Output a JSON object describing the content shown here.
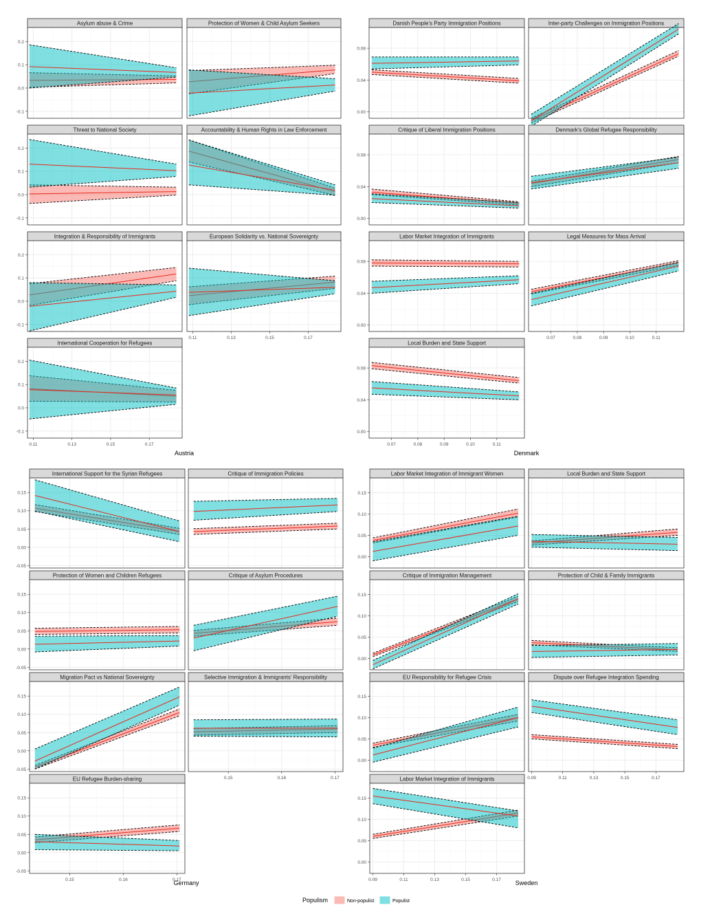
{
  "legend": {
    "title": "Populism",
    "items": [
      {
        "label": "Non-populist",
        "fill": "#F8766D",
        "key": "np"
      },
      {
        "label": "Populist",
        "fill": "#00BFC4",
        "key": "p"
      }
    ]
  },
  "colors": {
    "line": "#e8291c",
    "strip": "#d9d9d9",
    "grid": "#ebebeb",
    "panel_border": "#333333",
    "tick_text": "#4d4d4d"
  },
  "chart_data": [
    {
      "type": "line",
      "country": "Austria",
      "x_ticks": [
        "0.11",
        "0.13",
        "0.15",
        "0.17"
      ],
      "xlim": [
        0.107,
        0.187
      ],
      "xrange": [
        0.108,
        0.184
      ],
      "ylim": [
        -0.13,
        0.26
      ],
      "y_ticks": [
        -0.1,
        0.0,
        0.1,
        0.2
      ],
      "y_tick_labels": [
        "-0.1",
        "0.0",
        "0.1",
        "0.2"
      ],
      "panels": [
        {
          "title": "Asylum abuse & Crime",
          "series": [
            {
              "name": "Non-populist",
              "y0": 0.033,
              "y1": 0.037,
              "lo0": 0.003,
              "lo1": 0.022,
              "hi0": 0.066,
              "hi1": 0.052
            },
            {
              "name": "Populist",
              "y0": 0.092,
              "y1": 0.067,
              "lo0": 0.0,
              "lo1": 0.047,
              "hi0": 0.186,
              "hi1": 0.087
            }
          ]
        },
        {
          "title": "Protection of Women & Child Asylum Seekers",
          "series": [
            {
              "name": "Non-populist",
              "y0": 0.027,
              "y1": 0.078,
              "lo0": -0.025,
              "lo1": 0.062,
              "hi0": 0.075,
              "hi1": 0.098
            },
            {
              "name": "Populist",
              "y0": -0.022,
              "y1": 0.013,
              "lo0": -0.12,
              "lo1": -0.013,
              "hi0": 0.078,
              "hi1": 0.04
            }
          ]
        },
        {
          "title": "Threat to National Society",
          "series": [
            {
              "name": "Non-populist",
              "y0": 0.003,
              "y1": 0.013,
              "lo0": -0.038,
              "lo1": -0.002,
              "hi0": 0.042,
              "hi1": 0.032
            },
            {
              "name": "Populist",
              "y0": 0.131,
              "y1": 0.103,
              "lo0": 0.032,
              "lo1": 0.078,
              "hi0": 0.237,
              "hi1": 0.131
            }
          ]
        },
        {
          "title": "Accountability & Human Rights in Law Enforcement",
          "series": [
            {
              "name": "Non-populist",
              "y0": 0.187,
              "y1": 0.012,
              "lo0": 0.14,
              "lo1": -0.003,
              "hi0": 0.235,
              "hi1": 0.028
            },
            {
              "name": "Populist",
              "y0": 0.127,
              "y1": 0.019,
              "lo0": 0.042,
              "lo1": -0.003,
              "hi0": 0.235,
              "hi1": 0.042
            }
          ]
        },
        {
          "title": "Integration & Responsibility of Immigrants",
          "series": [
            {
              "name": "Non-populist",
              "y0": 0.027,
              "y1": 0.117,
              "lo0": -0.018,
              "lo1": 0.088,
              "hi0": 0.075,
              "hi1": 0.145
            },
            {
              "name": "Populist",
              "y0": -0.022,
              "y1": 0.043,
              "lo0": -0.128,
              "lo1": 0.017,
              "hi0": 0.08,
              "hi1": 0.07
            }
          ]
        },
        {
          "title": "European Solidarity vs. National Sovereignty",
          "series": [
            {
              "name": "Non-populist",
              "y0": 0.024,
              "y1": 0.082,
              "lo0": -0.015,
              "lo1": 0.055,
              "hi0": 0.062,
              "hi1": 0.108
            },
            {
              "name": "Populist",
              "y0": 0.038,
              "y1": 0.06,
              "lo0": -0.062,
              "lo1": 0.032,
              "hi0": 0.142,
              "hi1": 0.088
            }
          ]
        },
        {
          "title": "International Cooperation for Refugees",
          "series": [
            {
              "name": "Non-populist",
              "y0": 0.082,
              "y1": 0.05,
              "lo0": 0.028,
              "lo1": 0.025,
              "hi0": 0.138,
              "hi1": 0.075
            },
            {
              "name": "Populist",
              "y0": 0.078,
              "y1": 0.055,
              "lo0": -0.048,
              "lo1": 0.015,
              "hi0": 0.205,
              "hi1": 0.085
            }
          ]
        }
      ]
    },
    {
      "type": "line",
      "country": "Denmark",
      "x_ticks": [
        "0.07",
        "0.08",
        "0.09",
        "0.10",
        "0.11"
      ],
      "xlim": [
        0.0615,
        0.1205
      ],
      "xrange": [
        0.0625,
        0.1185
      ],
      "ylim": [
        -0.008,
        0.106
      ],
      "y_ticks": [
        0.0,
        0.04,
        0.08
      ],
      "y_tick_labels": [
        "0.00",
        "0.04",
        "0.08"
      ],
      "panels": [
        {
          "title": "Danish People's Party Immigration Positions",
          "series": [
            {
              "name": "Non-populist",
              "y0": 0.05,
              "y1": 0.039,
              "lo0": 0.047,
              "lo1": 0.036,
              "hi0": 0.053,
              "hi1": 0.042
            },
            {
              "name": "Populist",
              "y0": 0.061,
              "y1": 0.064,
              "lo0": 0.054,
              "lo1": 0.059,
              "hi0": 0.069,
              "hi1": 0.069
            }
          ]
        },
        {
          "title": "Inter-party Challenges on Immigration Positions",
          "series": [
            {
              "name": "Non-populist",
              "y0": -0.011,
              "y1": 0.073,
              "lo0": -0.014,
              "lo1": 0.07,
              "hi0": -0.008,
              "hi1": 0.077
            },
            {
              "name": "Populist",
              "y0": -0.011,
              "y1": 0.104,
              "lo0": -0.018,
              "lo1": 0.098,
              "hi0": -0.003,
              "hi1": 0.111
            }
          ]
        },
        {
          "title": "Critique of Liberal Immigration Positions",
          "series": [
            {
              "name": "Non-populist",
              "y0": 0.033,
              "y1": 0.019,
              "lo0": 0.03,
              "lo1": 0.017,
              "hi0": 0.037,
              "hi1": 0.021
            },
            {
              "name": "Populist",
              "y0": 0.025,
              "y1": 0.016,
              "lo0": 0.02,
              "lo1": 0.013,
              "hi0": 0.031,
              "hi1": 0.02
            }
          ]
        },
        {
          "title": "Denmark's Global Refugee Responsibility",
          "series": [
            {
              "name": "Non-populist",
              "y0": 0.044,
              "y1": 0.074,
              "lo0": 0.04,
              "lo1": 0.07,
              "hi0": 0.047,
              "hi1": 0.078
            },
            {
              "name": "Populist",
              "y0": 0.045,
              "y1": 0.07,
              "lo0": 0.037,
              "lo1": 0.063,
              "hi0": 0.053,
              "hi1": 0.077
            }
          ]
        },
        {
          "title": "Labor Market Integration of Immigrants",
          "series": [
            {
              "name": "Non-populist",
              "y0": 0.078,
              "y1": 0.077,
              "lo0": 0.074,
              "lo1": 0.073,
              "hi0": 0.082,
              "hi1": 0.08
            },
            {
              "name": "Populist",
              "y0": 0.047,
              "y1": 0.057,
              "lo0": 0.04,
              "lo1": 0.052,
              "hi0": 0.055,
              "hi1": 0.062
            }
          ]
        },
        {
          "title": "Legal Measures for Mass Arrival",
          "series": [
            {
              "name": "Non-populist",
              "y0": 0.042,
              "y1": 0.078,
              "lo0": 0.039,
              "lo1": 0.075,
              "hi0": 0.045,
              "hi1": 0.081
            },
            {
              "name": "Populist",
              "y0": 0.032,
              "y1": 0.074,
              "lo0": 0.024,
              "lo1": 0.068,
              "hi0": 0.04,
              "hi1": 0.079
            }
          ]
        },
        {
          "title": "Local Burden and State Support",
          "series": [
            {
              "name": "Non-populist",
              "y0": 0.083,
              "y1": 0.064,
              "lo0": 0.079,
              "lo1": 0.061,
              "hi0": 0.087,
              "hi1": 0.068
            },
            {
              "name": "Populist",
              "y0": 0.055,
              "y1": 0.045,
              "lo0": 0.047,
              "lo1": 0.04,
              "hi0": 0.063,
              "hi1": 0.05
            }
          ]
        }
      ]
    },
    {
      "type": "line",
      "country": "Germany",
      "x_ticks": [
        "0.15",
        "0.16",
        "0.17"
      ],
      "xlim": [
        0.1425,
        0.1715
      ],
      "xrange": [
        0.1435,
        0.1705
      ],
      "ylim": [
        -0.057,
        0.19
      ],
      "y_ticks": [
        -0.05,
        0.0,
        0.05,
        0.1,
        0.15
      ],
      "y_tick_labels": [
        "-0.05",
        "0.00",
        "0.05",
        "0.10",
        "0.15"
      ],
      "panels": [
        {
          "title": "International Support for the Syrian Refugees",
          "series": [
            {
              "name": "Non-populist",
              "y0": 0.107,
              "y1": 0.043,
              "lo0": 0.098,
              "lo1": 0.035,
              "hi0": 0.117,
              "hi1": 0.052
            },
            {
              "name": "Populist",
              "y0": 0.142,
              "y1": 0.043,
              "lo0": 0.099,
              "lo1": 0.015,
              "hi0": 0.185,
              "hi1": 0.072
            }
          ]
        },
        {
          "title": "Critique of Immigration Policies",
          "series": [
            {
              "name": "Non-populist",
              "y0": 0.043,
              "y1": 0.058,
              "lo0": 0.035,
              "lo1": 0.05,
              "hi0": 0.051,
              "hi1": 0.066
            },
            {
              "name": "Populist",
              "y0": 0.098,
              "y1": 0.116,
              "lo0": 0.074,
              "lo1": 0.098,
              "hi0": 0.126,
              "hi1": 0.134
            }
          ]
        },
        {
          "title": "Protection of Women and Children Refugees",
          "series": [
            {
              "name": "Non-populist",
              "y0": 0.048,
              "y1": 0.053,
              "lo0": 0.04,
              "lo1": 0.044,
              "hi0": 0.057,
              "hi1": 0.062
            },
            {
              "name": "Populist",
              "y0": 0.013,
              "y1": 0.022,
              "lo0": -0.008,
              "lo1": 0.008,
              "hi0": 0.035,
              "hi1": 0.037
            }
          ]
        },
        {
          "title": "Critique of Asylum Procedures",
          "series": [
            {
              "name": "Non-populist",
              "y0": 0.043,
              "y1": 0.075,
              "lo0": 0.035,
              "lo1": 0.065,
              "hi0": 0.051,
              "hi1": 0.085
            },
            {
              "name": "Populist",
              "y0": 0.03,
              "y1": 0.117,
              "lo0": -0.005,
              "lo1": 0.09,
              "hi0": 0.065,
              "hi1": 0.145
            }
          ]
        },
        {
          "title": "Migration Pact vs National Sovereignty",
          "series": [
            {
              "name": "Non-populist",
              "y0": -0.045,
              "y1": 0.105,
              "lo0": -0.05,
              "lo1": 0.096,
              "hi0": -0.04,
              "hi1": 0.115
            },
            {
              "name": "Populist",
              "y0": -0.028,
              "y1": 0.148,
              "lo0": -0.05,
              "lo1": 0.125,
              "hi0": 0.005,
              "hi1": 0.175
            }
          ]
        },
        {
          "title": "Selective Immigration & Immigrants' Responsibility",
          "series": [
            {
              "name": "Non-populist",
              "y0": 0.052,
              "y1": 0.06,
              "lo0": 0.043,
              "lo1": 0.05,
              "hi0": 0.061,
              "hi1": 0.069
            },
            {
              "name": "Populist",
              "y0": 0.062,
              "y1": 0.062,
              "lo0": 0.04,
              "lo1": 0.038,
              "hi0": 0.085,
              "hi1": 0.087
            }
          ]
        },
        {
          "title": "EU Refugee Burden-sharing",
          "series": [
            {
              "name": "Non-populist",
              "y0": 0.035,
              "y1": 0.067,
              "lo0": 0.027,
              "lo1": 0.058,
              "hi0": 0.043,
              "hi1": 0.076
            },
            {
              "name": "Populist",
              "y0": 0.03,
              "y1": 0.018,
              "lo0": 0.008,
              "lo1": 0.005,
              "hi0": 0.05,
              "hi1": 0.033
            }
          ]
        }
      ]
    },
    {
      "type": "line",
      "country": "Sweden",
      "x_ticks": [
        "0.09",
        "0.11",
        "0.13",
        "0.15",
        "0.17"
      ],
      "xlim": [
        0.088,
        0.188
      ],
      "xrange": [
        0.09,
        0.184
      ],
      "ylim": [
        -0.027,
        0.185
      ],
      "y_ticks": [
        0.0,
        0.05,
        0.1,
        0.15
      ],
      "y_tick_labels": [
        "0.00",
        "0.05",
        "0.10",
        "0.15"
      ],
      "panels": [
        {
          "title": "Labor Market Integration of Immigrant Women",
          "series": [
            {
              "name": "Non-populist",
              "y0": 0.038,
              "y1": 0.102,
              "lo0": 0.032,
              "lo1": 0.093,
              "hi0": 0.044,
              "hi1": 0.112
            },
            {
              "name": "Populist",
              "y0": 0.012,
              "y1": 0.072,
              "lo0": -0.01,
              "lo1": 0.05,
              "hi0": 0.035,
              "hi1": 0.095
            }
          ]
        },
        {
          "title": "Local Burden and State Support",
          "series": [
            {
              "name": "Non-populist",
              "y0": 0.032,
              "y1": 0.057,
              "lo0": 0.027,
              "lo1": 0.05,
              "hi0": 0.037,
              "hi1": 0.065
            },
            {
              "name": "Populist",
              "y0": 0.036,
              "y1": 0.029,
              "lo0": 0.022,
              "lo1": 0.014,
              "hi0": 0.052,
              "hi1": 0.045
            }
          ]
        },
        {
          "title": "Critique of Immigration Management",
          "series": [
            {
              "name": "Non-populist",
              "y0": 0.008,
              "y1": 0.14,
              "lo0": 0.004,
              "lo1": 0.134,
              "hi0": 0.012,
              "hi1": 0.146
            },
            {
              "name": "Populist",
              "y0": -0.015,
              "y1": 0.14,
              "lo0": -0.025,
              "lo1": 0.128,
              "hi0": -0.005,
              "hi1": 0.152
            }
          ]
        },
        {
          "title": "Protection of Child & Family Immigrants",
          "series": [
            {
              "name": "Non-populist",
              "y0": 0.037,
              "y1": 0.02,
              "lo0": 0.032,
              "lo1": 0.016,
              "hi0": 0.042,
              "hi1": 0.025
            },
            {
              "name": "Populist",
              "y0": 0.016,
              "y1": 0.021,
              "lo0": 0.002,
              "lo1": 0.008,
              "hi0": 0.03,
              "hi1": 0.035
            }
          ]
        },
        {
          "title": "EU Responsibility for Refugee Crisis",
          "series": [
            {
              "name": "Non-populist",
              "y0": 0.035,
              "y1": 0.1,
              "lo0": 0.03,
              "lo1": 0.092,
              "hi0": 0.04,
              "hi1": 0.108
            },
            {
              "name": "Populist",
              "y0": 0.012,
              "y1": 0.1,
              "lo0": -0.005,
              "lo1": 0.078,
              "hi0": 0.028,
              "hi1": 0.125
            }
          ]
        },
        {
          "title": "Dispute over Refugee Integration Spending",
          "series": [
            {
              "name": "Non-populist",
              "y0": 0.055,
              "y1": 0.032,
              "lo0": 0.05,
              "lo1": 0.027,
              "hi0": 0.06,
              "hi1": 0.037
            },
            {
              "name": "Populist",
              "y0": 0.127,
              "y1": 0.077,
              "lo0": 0.112,
              "lo1": 0.06,
              "hi0": 0.142,
              "hi1": 0.095
            }
          ]
        },
        {
          "title": "Labor Market Integration of Immigrants",
          "series": [
            {
              "name": "Non-populist",
              "y0": 0.06,
              "y1": 0.115,
              "lo0": 0.055,
              "lo1": 0.108,
              "hi0": 0.065,
              "hi1": 0.122
            },
            {
              "name": "Populist",
              "y0": 0.155,
              "y1": 0.108,
              "lo0": 0.137,
              "lo1": 0.08,
              "hi0": 0.173,
              "hi1": 0.12
            }
          ]
        }
      ]
    }
  ]
}
